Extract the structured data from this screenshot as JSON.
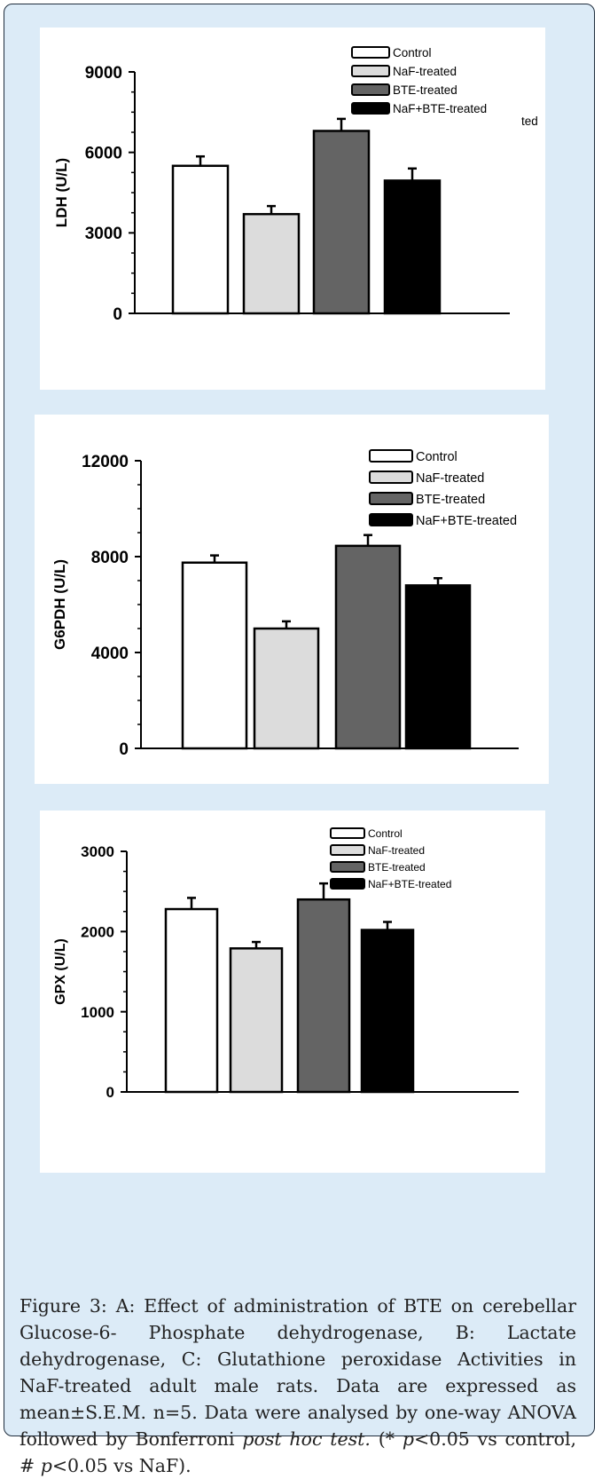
{
  "chart_data": [
    {
      "type": "bar",
      "ylabel": "LDH (U/L)",
      "ylim": [
        0,
        9000
      ],
      "yticks": [
        0,
        3000,
        6000,
        9000
      ],
      "categories": [
        "Control",
        "NaF-treated",
        "BTE-treated",
        "NaF+BTE-treated"
      ],
      "values": [
        5500,
        3700,
        6800,
        4950
      ],
      "errors": [
        350,
        300,
        450,
        450
      ],
      "bar_colors": [
        "#ffffff",
        "#dcdcdc",
        "#646464",
        "#000000"
      ],
      "legend": [
        "Control",
        "NaF-treated",
        "BTE-treated",
        "NaF+BTE-treated"
      ],
      "legend_extra": "ted",
      "legend_position": "top-right"
    },
    {
      "type": "bar",
      "ylabel": "G6PDH (U/L)",
      "ylim": [
        0,
        12000
      ],
      "yticks": [
        0,
        4000,
        8000,
        12000
      ],
      "categories": [
        "Control",
        "NaF-treated",
        "BTE-treated",
        "NaF+BTE-treated"
      ],
      "values": [
        7750,
        5000,
        8450,
        6800
      ],
      "errors": [
        300,
        300,
        450,
        300
      ],
      "bar_colors": [
        "#ffffff",
        "#dcdcdc",
        "#646464",
        "#000000"
      ],
      "legend": [
        "Control",
        "NaF-treated",
        "BTE-treated",
        "NaF+BTE-treated"
      ],
      "legend_position": "top-right"
    },
    {
      "type": "bar",
      "ylabel": "GPX (U/L)",
      "ylim": [
        0,
        3000
      ],
      "yticks": [
        0,
        1000,
        2000,
        3000
      ],
      "categories": [
        "Control",
        "NaF-treated",
        "BTE-treated",
        "NaF+BTE-treated"
      ],
      "values": [
        2280,
        1790,
        2400,
        2020
      ],
      "errors": [
        140,
        80,
        200,
        100
      ],
      "bar_colors": [
        "#ffffff",
        "#dcdcdc",
        "#646464",
        "#000000"
      ],
      "legend": [
        "Control",
        "NaF-treated",
        "BTE-treated",
        "NaF+BTE-treated"
      ],
      "legend_position": "top-right"
    }
  ],
  "caption": {
    "lead": "Figure 3: A: Effect of administration of BTE on cerebellar Glucose-6- Phosphate dehydrogenase, B: Lactate dehydrogenase, C: Glutathione peroxidase Activities in NaF-treated adult male rats. Data are expressed as mean±S.E.M. n=5. Data were analysed by one-way ANOVA followed by Bonferroni ",
    "italic1": "post hoc test.",
    "part2": " (* ",
    "italic2": "p",
    "part3": "<0.05 vs control, # ",
    "italic3": "p",
    "part4": "<0.05 vs NaF)."
  }
}
